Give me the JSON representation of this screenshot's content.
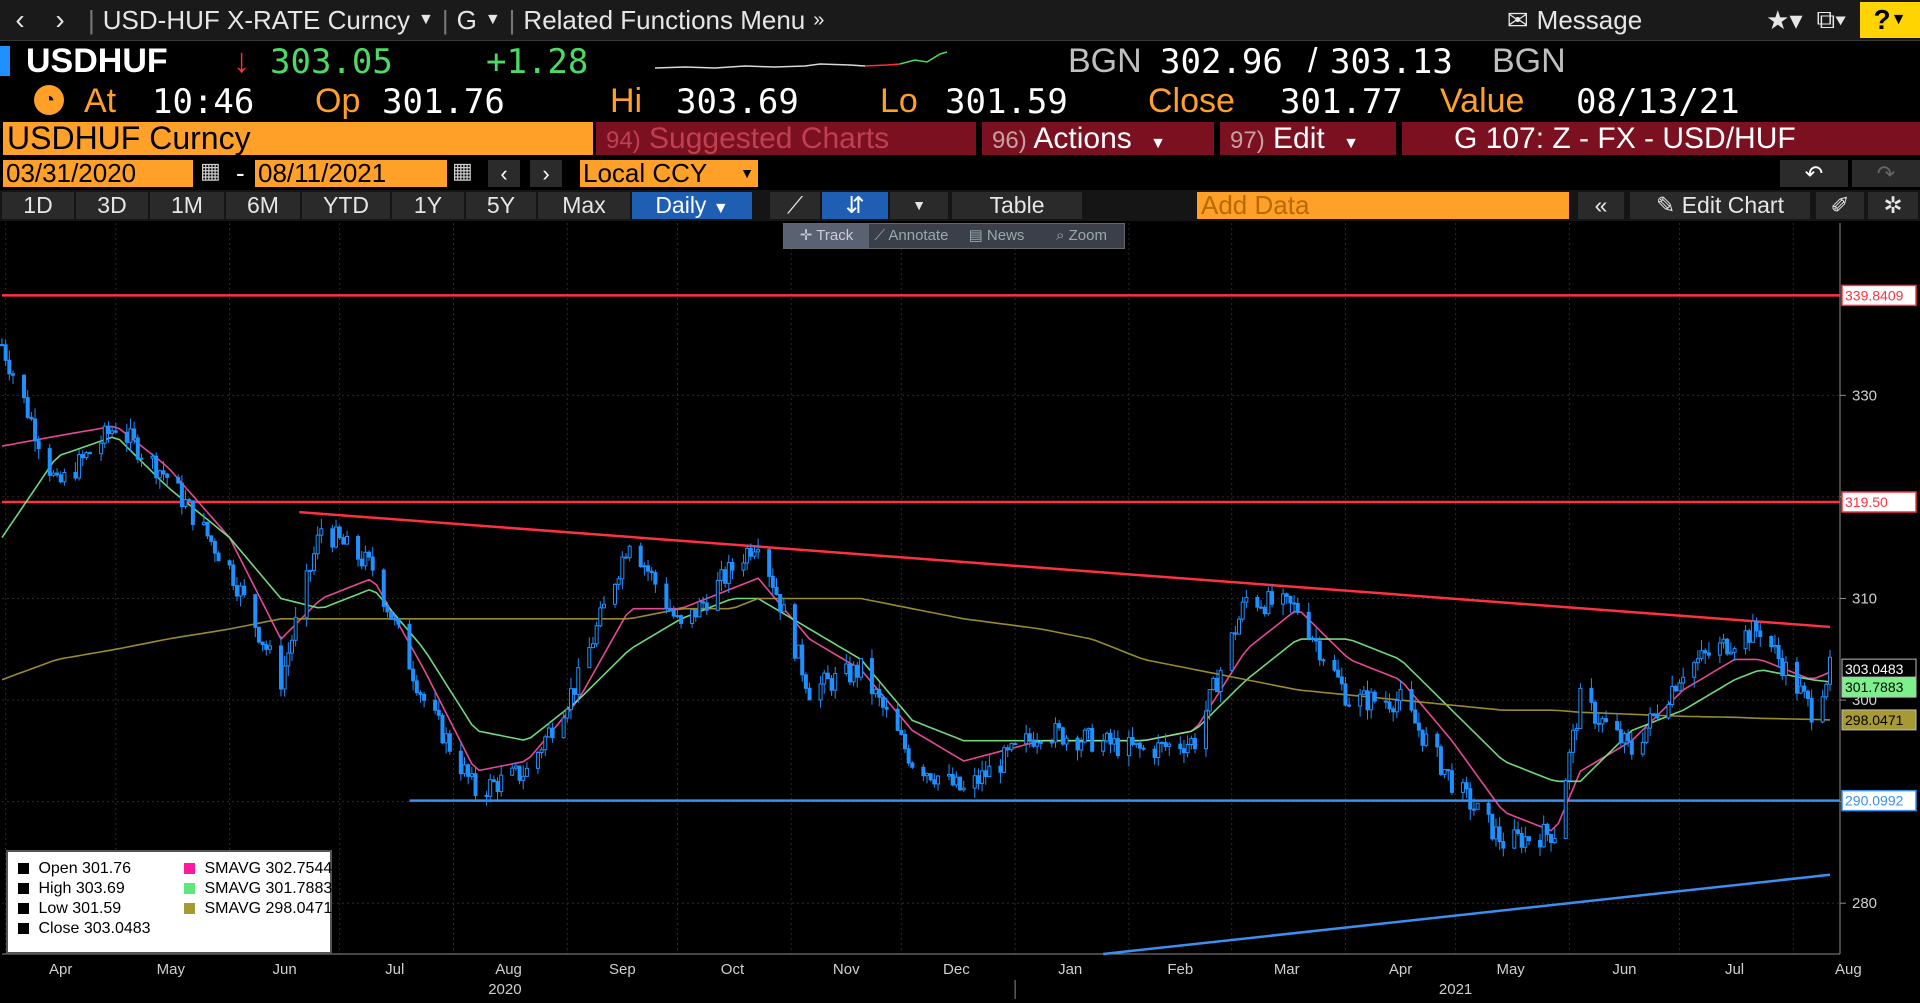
{
  "topbar": {
    "back": "‹",
    "forward": "›",
    "security_menu": "USD-HUF X-RATE Curncy",
    "function_menu": "G",
    "related_menu": "Related Functions Menu",
    "message": "Message",
    "help": "?"
  },
  "quote": {
    "ticker": "USDHUF",
    "arrow": "↓",
    "last": "303.05",
    "change": "+1.28",
    "bid_source": "BGN",
    "bid": "302.96",
    "ask": "303.13",
    "ask_source": "BGN",
    "at_label": "At",
    "time": "10:46",
    "open_label": "Op",
    "open": "301.76",
    "hi_label": "Hi",
    "high": "303.69",
    "lo_label": "Lo",
    "low": "301.59",
    "close_label": "Close",
    "close": "301.77",
    "value_label": "Value",
    "value_date": "08/13/21"
  },
  "menubar": {
    "security": "USDHUF Curncy",
    "suggested_num": "94)",
    "suggested": "Suggested Charts",
    "actions_num": "96)",
    "actions": "Actions",
    "edit_num": "97)",
    "edit": "Edit",
    "chart_id": "G 107: Z - FX - USD/HUF"
  },
  "range": {
    "start": "03/31/2020",
    "dash": "-",
    "end": "08/11/2021",
    "currency": "Local CCY"
  },
  "toolbar": {
    "periods": [
      "1D",
      "3D",
      "1M",
      "6M",
      "YTD",
      "1Y",
      "5Y",
      "Max"
    ],
    "frequency": "Daily",
    "table": "Table",
    "add_data_placeholder": "Add Data",
    "edit_chart": "Edit Chart"
  },
  "chart_tools": [
    "Track",
    "Annotate",
    "News",
    "Zoom"
  ],
  "legend": {
    "open_label": "Open",
    "open": "301.76",
    "high_label": "High",
    "high": "303.69",
    "low_label": "Low",
    "low": "301.59",
    "close_label": "Close",
    "close": "303.0483",
    "sma1_label": "SMAVG",
    "sma1": "302.7544",
    "sma2_label": "SMAVG",
    "sma2": "301.7883",
    "sma3_label": "SMAVG",
    "sma3": "298.0471"
  },
  "colors": {
    "background": "#000000",
    "orange": "#ffa028",
    "candle": "#1e90ff",
    "sma1": "#ff4fa8",
    "sma2": "#7cf08a",
    "sma3": "#a89a32",
    "resistance": "#ff3040",
    "support": "#3a8ff0"
  },
  "chart_data": {
    "type": "line",
    "title": "USDHUF Curncy",
    "x_range": [
      "2020-03-31",
      "2021-08-11"
    ],
    "ylim": [
      275,
      345
    ],
    "y_ticks": [
      280,
      290,
      300,
      310,
      320,
      330
    ],
    "month_labels": [
      "Apr",
      "May",
      "Jun",
      "Jul",
      "Aug",
      "Sep",
      "Oct",
      "Nov",
      "Dec",
      "Jan",
      "Feb",
      "Mar",
      "Apr",
      "May",
      "Jun",
      "Jul",
      "Aug"
    ],
    "year_labels": [
      "2020",
      "2021"
    ],
    "series": [
      {
        "kind": "candles",
        "x": [
          "2020-03-31",
          "2020-04-15",
          "2020-05-01",
          "2020-05-15",
          "2020-06-01",
          "2020-06-15",
          "2020-06-26",
          "2020-07-10",
          "2020-07-24",
          "2020-08-07",
          "2020-08-21",
          "2020-09-04",
          "2020-09-18",
          "2020-10-02",
          "2020-10-16",
          "2020-10-23",
          "2020-11-06",
          "2020-11-20",
          "2020-12-04",
          "2020-12-18",
          "2021-01-08",
          "2021-01-22",
          "2021-02-05",
          "2021-02-19",
          "2021-03-05",
          "2021-03-19",
          "2021-04-02",
          "2021-04-16",
          "2021-04-30",
          "2021-05-14",
          "2021-05-28",
          "2021-06-04",
          "2021-06-18",
          "2021-07-02",
          "2021-07-16",
          "2021-07-23",
          "2021-08-06",
          "2021-08-11"
        ],
        "y": [
          335,
          321,
          327,
          322,
          313,
          302,
          317,
          313,
          300,
          291,
          293,
          302,
          316,
          307,
          313,
          316,
          301,
          303,
          294,
          291,
          297,
          296,
          295,
          296,
          310,
          309,
          300,
          300,
          292,
          286,
          287,
          300,
          295,
          303,
          306,
          307,
          299,
          303.05
        ]
      },
      {
        "name": "SMAVG",
        "window": "short",
        "y": [
          325,
          326,
          327,
          323,
          316,
          306,
          310,
          312,
          303,
          293,
          294,
          300,
          309,
          309,
          311,
          312,
          306,
          303,
          297,
          294,
          296,
          296,
          296,
          297,
          305,
          309,
          304,
          302,
          296,
          289,
          287,
          293,
          296,
          301,
          304,
          304,
          302,
          302.75
        ]
      },
      {
        "name": "SMAVG",
        "window": "mid",
        "y": [
          316,
          324,
          326,
          321,
          316,
          310,
          309,
          311,
          305,
          297,
          296,
          300,
          305,
          308,
          310,
          310,
          307,
          304,
          298,
          296,
          296,
          296,
          296,
          297,
          302,
          306,
          306,
          304,
          299,
          294,
          292,
          292,
          297,
          299,
          302,
          303,
          302,
          301.79
        ]
      },
      {
        "name": "SMAVG",
        "window": "long",
        "y": [
          302,
          304,
          305,
          306,
          307,
          308,
          308,
          308,
          308,
          308,
          308,
          308,
          308,
          309,
          309,
          310,
          310,
          310,
          309,
          308,
          307,
          306,
          304,
          303,
          302,
          301,
          300.5,
          300,
          299.5,
          299,
          299,
          298.8,
          298.6,
          298.4,
          298.3,
          298.2,
          298.1,
          298.05
        ]
      }
    ],
    "horizontal_lines": [
      {
        "y": 339.8409,
        "label": "339.8409",
        "color": "#ff3040",
        "x_from": "2020-03-31"
      },
      {
        "y": 319.5,
        "label": "319.50",
        "color": "#ff3040",
        "x_from": "2020-03-31"
      },
      {
        "y": 290.0992,
        "label": "290.0992",
        "color": "#3a8ff0",
        "x_from": "2020-07-20"
      }
    ],
    "trendlines": [
      {
        "color": "#ff3040",
        "from": [
          "2020-06-20",
          318.5
        ],
        "to": [
          "2021-08-11",
          307.2
        ]
      },
      {
        "color": "#3a8ff0",
        "from": [
          "2021-01-25",
          275
        ],
        "to": [
          "2021-08-11",
          282.8
        ]
      }
    ],
    "price_tags": [
      {
        "label": "303.0483",
        "value": 303.0483,
        "bg": "#000000",
        "fg": "#ffffff"
      },
      {
        "label": "301.7883",
        "value": 301.7883,
        "bg": "#7cf08a",
        "fg": "#000000"
      },
      {
        "label": "298.0471",
        "value": 298.0471,
        "bg": "#a89a32",
        "fg": "#000000"
      }
    ],
    "grid": true,
    "legend_position": "bottom-left"
  }
}
